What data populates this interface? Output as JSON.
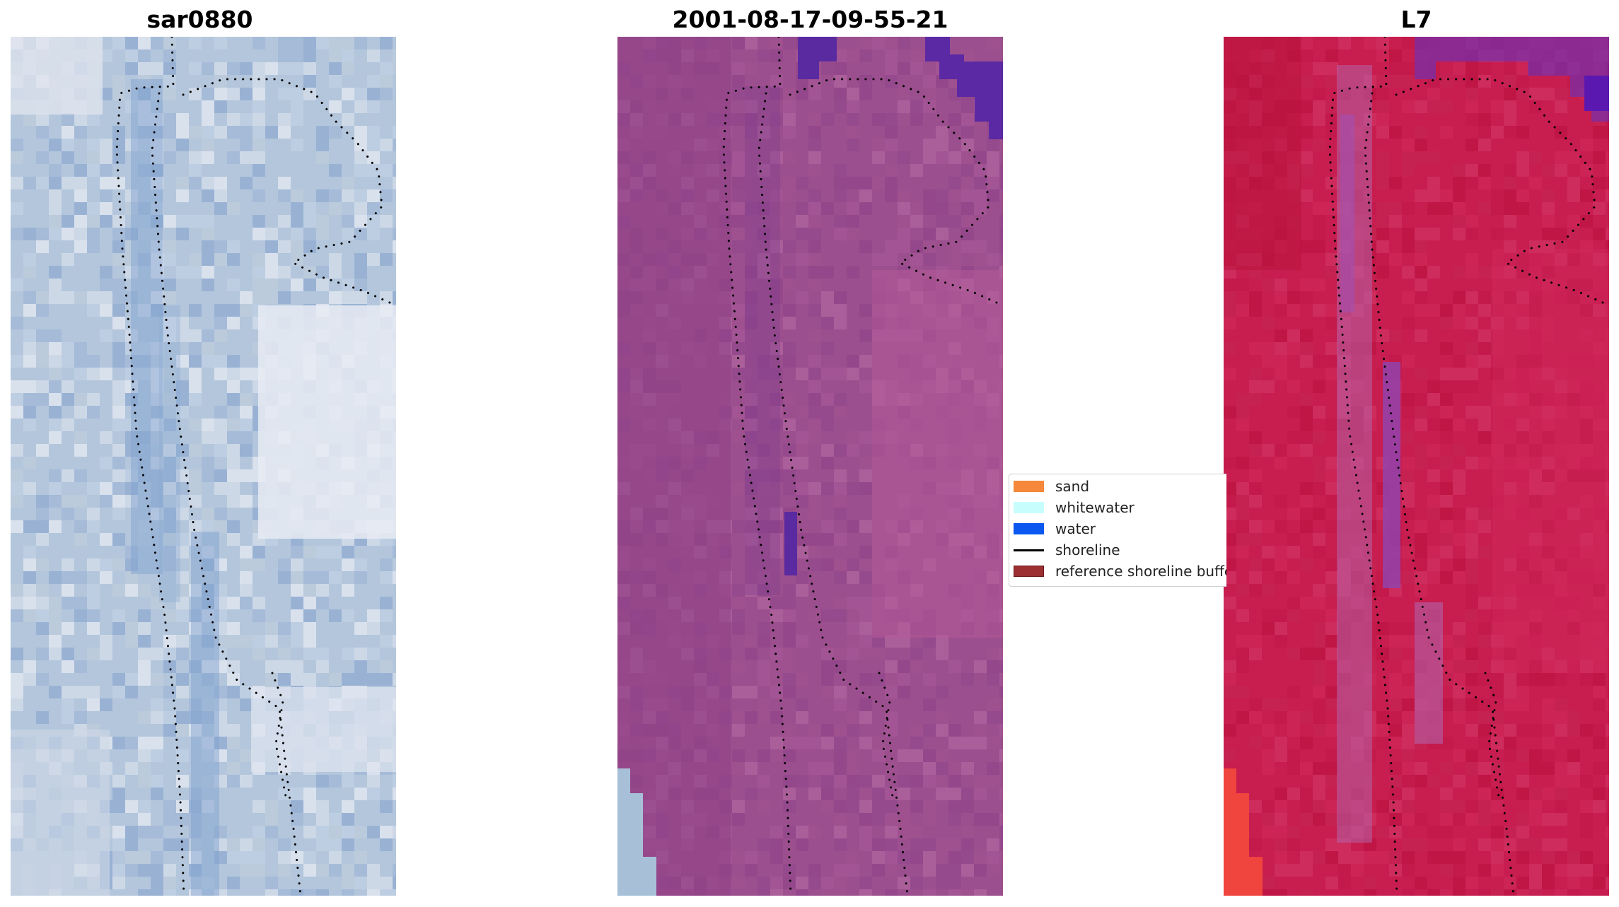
{
  "panels": [
    {
      "title": "sar0880",
      "image_desc": "sar-satellite-image"
    },
    {
      "title": "2001-08-17-09-55-21",
      "image_desc": "classified-image"
    },
    {
      "title": "L7",
      "image_desc": "index-image"
    }
  ],
  "legend": {
    "items": [
      {
        "label": "sand",
        "color": "#f5883a",
        "kind": "patch"
      },
      {
        "label": "whitewater",
        "color": "#c8fdfd",
        "kind": "patch"
      },
      {
        "label": "water",
        "color": "#0a58f0",
        "kind": "patch"
      },
      {
        "label": "shoreline",
        "color": "#000000",
        "kind": "line"
      },
      {
        "label": "reference shoreline buffer",
        "color": "#9b2f32",
        "kind": "patch"
      }
    ]
  },
  "colors": {
    "sar_base": "#b4c6dc",
    "class_base": "#9c4f8e",
    "index_base": "#c81e4e",
    "deep_purple": "#5a2aa0"
  }
}
